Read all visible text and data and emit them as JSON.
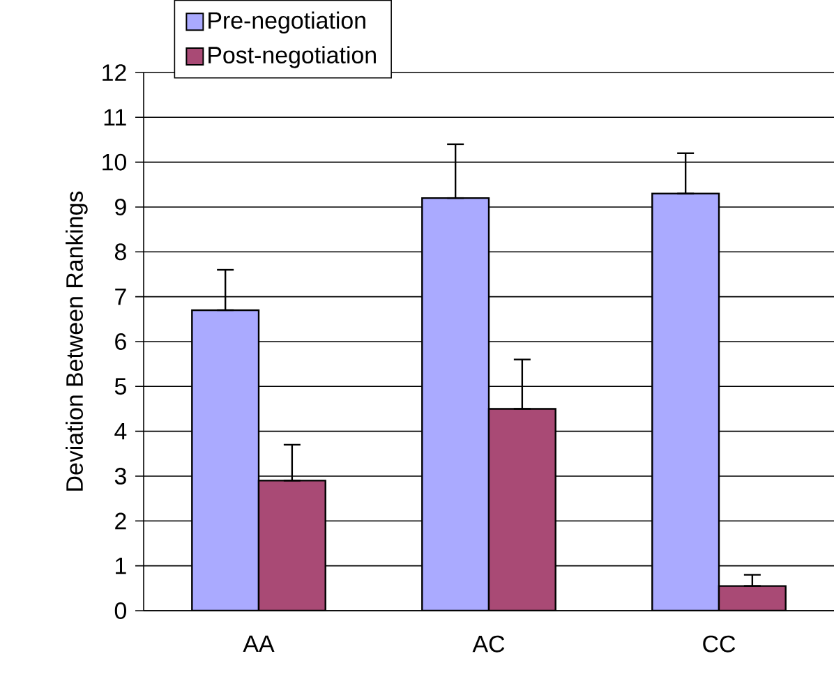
{
  "chart_data": {
    "type": "bar",
    "ylabel": "Deviation Between Rankings",
    "categories": [
      "AA",
      "AC",
      "CC"
    ],
    "series": [
      {
        "name": "Pre-negotiation",
        "color": "#aaaaff",
        "values": [
          6.7,
          9.2,
          9.3
        ],
        "errors": [
          [
            6.7,
            7.6
          ],
          [
            9.2,
            10.4
          ],
          [
            9.3,
            10.2
          ]
        ]
      },
      {
        "name": "Post-negotiation",
        "color": "#a94a75",
        "values": [
          2.9,
          4.5,
          0.55
        ],
        "errors": [
          [
            2.9,
            3.7
          ],
          [
            4.5,
            5.6
          ],
          [
            0.55,
            0.8
          ]
        ]
      }
    ],
    "ylim": [
      0,
      12
    ],
    "yticks": [
      0,
      1,
      2,
      3,
      4,
      5,
      6,
      7,
      8,
      9,
      10,
      11,
      12
    ],
    "grid": "y",
    "legend": "top left"
  }
}
